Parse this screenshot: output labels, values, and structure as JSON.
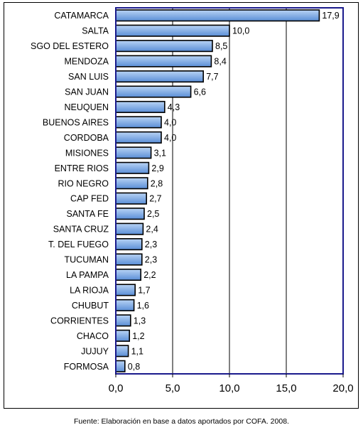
{
  "chart_data": {
    "type": "bar",
    "orientation": "horizontal",
    "categories": [
      "CATAMARCA",
      "SALTA",
      "SGO DEL ESTERO",
      "MENDOZA",
      "SAN LUIS",
      "SAN JUAN",
      "NEUQUEN",
      "BUENOS AIRES",
      "CORDOBA",
      "MISIONES",
      "ENTRE RIOS",
      "RIO NEGRO",
      "CAP FED",
      "SANTA FE",
      "SANTA CRUZ",
      "T. DEL FUEGO",
      "TUCUMAN",
      "LA PAMPA",
      "LA RIOJA",
      "CHUBUT",
      "CORRIENTES",
      "CHACO",
      "JUJUY",
      "FORMOSA"
    ],
    "values": [
      17.9,
      10.0,
      8.5,
      8.4,
      7.7,
      6.6,
      4.3,
      4.0,
      4.0,
      3.1,
      2.9,
      2.8,
      2.7,
      2.5,
      2.4,
      2.3,
      2.3,
      2.2,
      1.7,
      1.6,
      1.3,
      1.2,
      1.1,
      0.8
    ],
    "value_labels": [
      "17,9",
      "10,0",
      "8,5",
      "8,4",
      "7,7",
      "6,6",
      "4,3",
      "4,0",
      "4,0",
      "3,1",
      "2,9",
      "2,8",
      "2,7",
      "2,5",
      "2,4",
      "2,3",
      "2,3",
      "2,2",
      "1,7",
      "1,6",
      "1,3",
      "1,2",
      "1,1",
      "0,8"
    ],
    "xlim": [
      0,
      20
    ],
    "xticks": [
      0,
      5,
      10,
      15,
      20
    ],
    "xtick_labels": [
      "0,0",
      "5,0",
      "10,0",
      "15,0",
      "20,0"
    ],
    "grid": "vertical",
    "title": "",
    "xlabel": "",
    "ylabel": "",
    "colors": {
      "bar_fill_light": "#b9d4f5",
      "bar_fill_dark": "#5a8ed6",
      "bar_edge": "#000000",
      "plot_border": "#1a1a8c",
      "grid": "#000000"
    }
  },
  "footer": {
    "source": "Fuente: Elaboración en base a datos aportados por COFA. 2008."
  }
}
